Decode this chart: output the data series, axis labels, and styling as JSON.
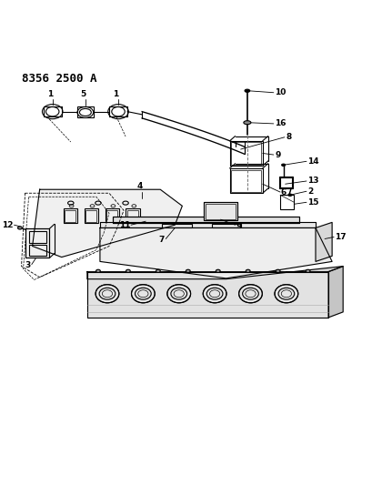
{
  "title": "8356 2500 A",
  "bg_color": "#ffffff",
  "line_color": "#000000",
  "fig_width": 4.1,
  "fig_height": 5.33,
  "dpi": 100
}
